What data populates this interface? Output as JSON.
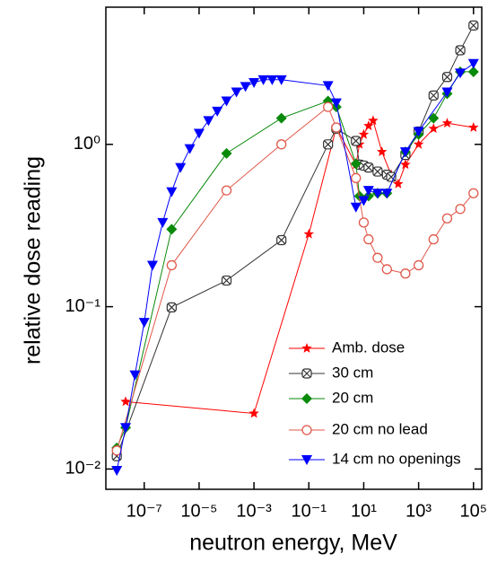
{
  "chart_data": {
    "type": "line",
    "xscale": "log",
    "yscale": "log",
    "xlabel": "neutron energy, MeV",
    "ylabel": "relative dose reading",
    "xlim": [
      4e-09,
      200000.0
    ],
    "ylim": [
      0.0075,
      7
    ],
    "xticks": [
      {
        "value": 1e-07,
        "label": "10⁻⁷"
      },
      {
        "value": 1e-05,
        "label": "10⁻⁵"
      },
      {
        "value": 0.001,
        "label": "10⁻³"
      },
      {
        "value": 0.1,
        "label": "10⁻¹"
      },
      {
        "value": 10,
        "label": "10¹"
      },
      {
        "value": 1000,
        "label": "10³"
      },
      {
        "value": 100000,
        "label": "10⁵"
      }
    ],
    "yticks": [
      {
        "value": 0.01,
        "label": "10⁻²"
      },
      {
        "value": 0.1,
        "label": "10⁻¹"
      },
      {
        "value": 1,
        "label": "10⁰"
      }
    ],
    "legend": "lower right",
    "series": [
      {
        "name": "Amb. dose",
        "color": "#ff0000",
        "marker": "star",
        "x": [
          2.1e-08,
          0.001,
          0.1,
          1,
          5.2,
          7,
          10,
          15,
          22,
          46,
          100,
          180,
          330,
          1000,
          3500,
          11000,
          100000
        ],
        "values": [
          0.026,
          0.022,
          0.28,
          1.27,
          0.75,
          1.0,
          1.15,
          1.3,
          1.4,
          0.9,
          0.65,
          0.57,
          0.75,
          1.0,
          1.25,
          1.35,
          1.27
        ]
      },
      {
        "name": "30 cm",
        "color": "#333333",
        "marker": "boxcross",
        "x": [
          1e-08,
          1e-06,
          0.0001,
          0.01,
          0.5,
          1,
          5.2,
          7,
          10,
          15,
          32,
          70,
          100,
          330,
          1000,
          3500,
          11000,
          33000,
          100000
        ],
        "values": [
          0.012,
          0.099,
          0.145,
          0.257,
          1.0,
          1.25,
          1.05,
          0.75,
          0.74,
          0.72,
          0.68,
          0.65,
          0.63,
          0.86,
          1.2,
          2.0,
          2.6,
          3.8,
          5.4
        ]
      },
      {
        "name": "20 cm",
        "color": "#0a8a0a",
        "marker": "diamond",
        "x": [
          1e-08,
          2.1e-08,
          1e-06,
          0.0001,
          0.01,
          0.5,
          1,
          5.2,
          7,
          15,
          32,
          70,
          330,
          1000,
          3500,
          11000,
          33000,
          100000
        ],
        "values": [
          0.0135,
          0.018,
          0.3,
          0.88,
          1.45,
          1.85,
          1.7,
          0.76,
          0.48,
          0.48,
          0.5,
          0.5,
          0.9,
          1.15,
          1.45,
          2.05,
          2.8,
          2.8
        ]
      },
      {
        "name": "20 cm no lead",
        "color": "#e0584a",
        "marker": "circle",
        "x": [
          1e-08,
          1e-06,
          0.0001,
          0.01,
          0.5,
          1,
          5.2,
          10,
          15,
          32,
          70,
          330,
          1000,
          3500,
          11000,
          33000,
          100000
        ],
        "values": [
          0.013,
          0.18,
          0.52,
          1.0,
          1.7,
          1.27,
          0.62,
          0.33,
          0.26,
          0.2,
          0.17,
          0.16,
          0.18,
          0.26,
          0.35,
          0.4,
          0.5
        ]
      },
      {
        "name": "14 cm no openings",
        "color": "#0000ff",
        "marker": "triangle-down",
        "x": [
          1e-08,
          2.1e-08,
          4.6e-08,
          1e-07,
          2e-07,
          4.7e-07,
          1e-06,
          2.1e-06,
          4.6e-06,
          1e-05,
          2.2e-05,
          4.6e-05,
          0.0001,
          0.00023,
          0.00049,
          0.001,
          0.0022,
          0.0046,
          0.01,
          0.5,
          1,
          5.2,
          10,
          15,
          32,
          70,
          330,
          1000,
          11000,
          33000,
          100000
        ],
        "values": [
          0.0098,
          0.018,
          0.038,
          0.08,
          0.18,
          0.33,
          0.51,
          0.72,
          0.94,
          1.17,
          1.4,
          1.6,
          1.85,
          2.1,
          2.27,
          2.4,
          2.5,
          2.5,
          2.5,
          2.3,
          1.8,
          0.41,
          0.45,
          0.52,
          0.5,
          0.5,
          0.9,
          1.2,
          2.1,
          2.75,
          3.15
        ]
      }
    ]
  }
}
